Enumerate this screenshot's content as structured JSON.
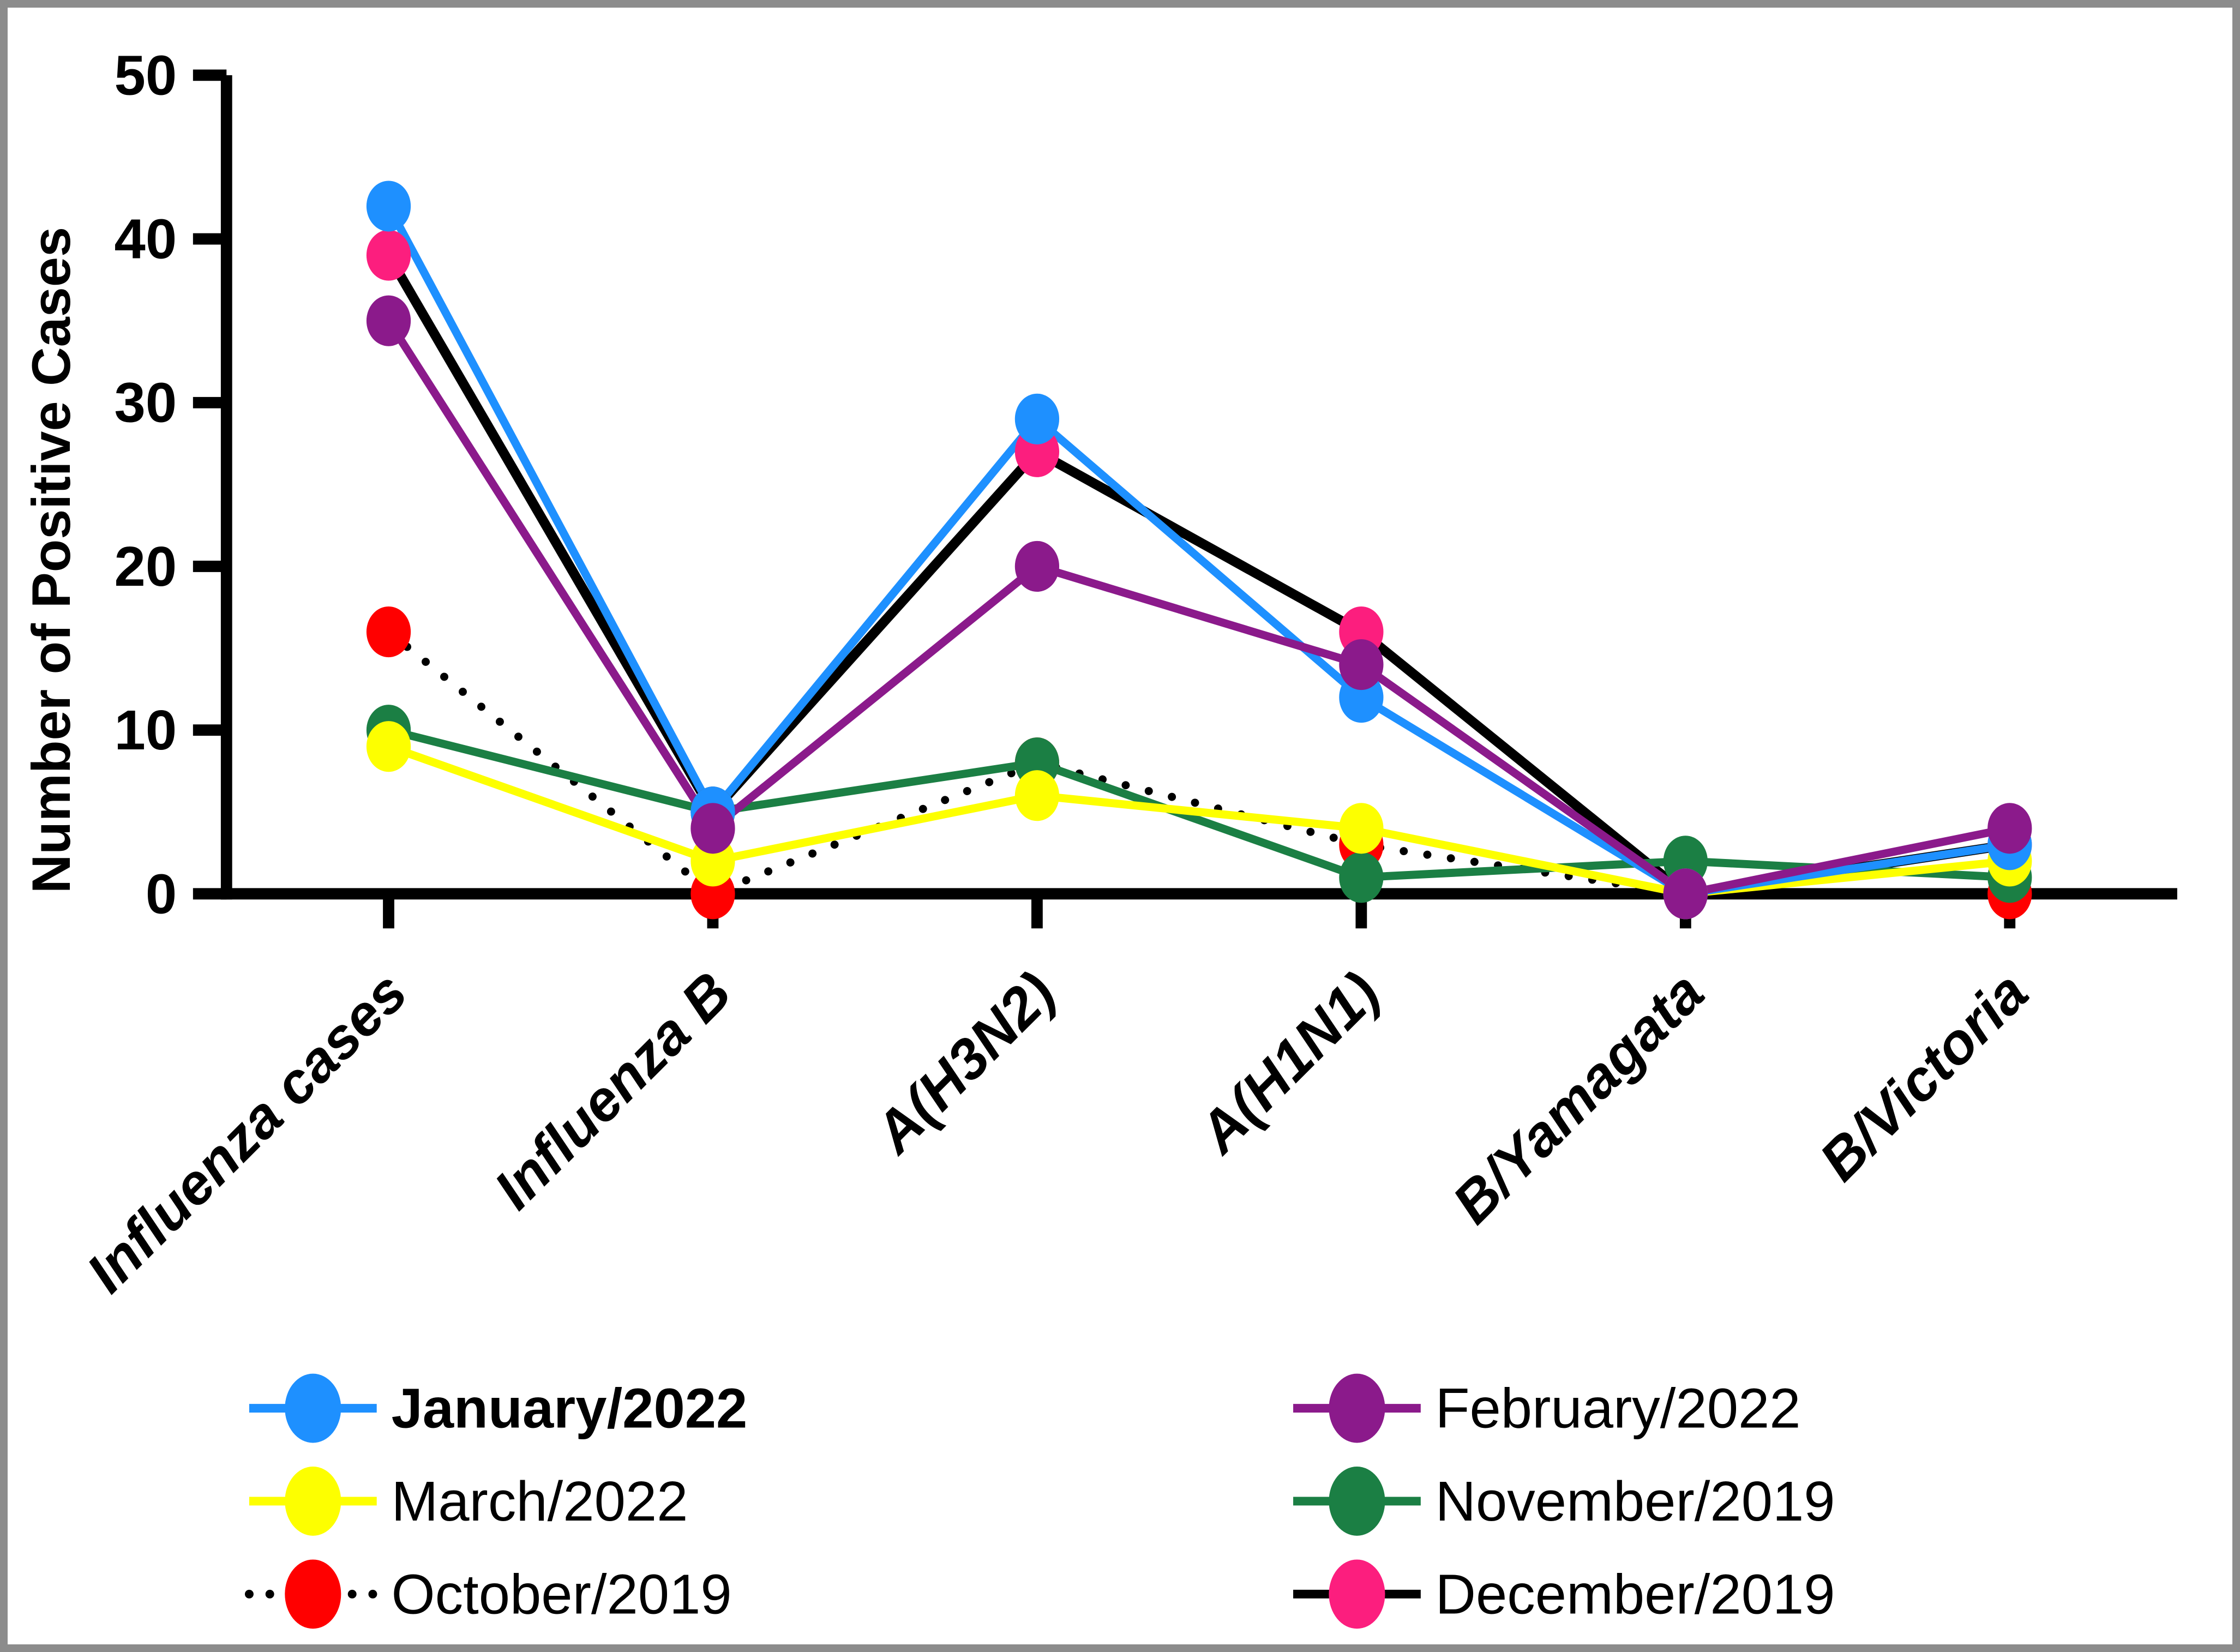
{
  "chart_data": {
    "type": "line",
    "title": "",
    "xlabel": "",
    "ylabel": "Number of Positive Cases",
    "ylim": [
      0,
      50
    ],
    "yticks": [
      0,
      10,
      20,
      30,
      40,
      50
    ],
    "grid": false,
    "legend_position": "bottom-two-columns",
    "categories": [
      "Influenza cases",
      "Influenza B",
      "A(H3N2)",
      "A(H1N1)",
      "B/Yamagata",
      "B/Victoria"
    ],
    "series": [
      {
        "name": "October/2019",
        "marker_color": "#ff0000",
        "line_color": "#000000",
        "line_style": "dotted",
        "values": [
          16,
          0,
          8,
          3,
          0,
          0
        ],
        "bold_label": false
      },
      {
        "name": "December/2019",
        "marker_color": "#fc1e7e",
        "line_color": "#000000",
        "line_style": "solid",
        "values": [
          39,
          5,
          27,
          16,
          0,
          3
        ],
        "bold_label": false
      },
      {
        "name": "November/2019",
        "marker_color": "#1b7f44",
        "line_color": "#1b7f44",
        "line_style": "solid",
        "values": [
          10,
          5,
          8,
          1,
          2,
          1
        ],
        "bold_label": false
      },
      {
        "name": "March/2022",
        "marker_color": "#fdff00",
        "line_color": "#fdff00",
        "line_style": "solid",
        "values": [
          9,
          2,
          6,
          4,
          0,
          2
        ],
        "bold_label": false
      },
      {
        "name": "January/2022",
        "marker_color": "#1e90ff",
        "line_color": "#1e90ff",
        "line_style": "solid",
        "values": [
          42,
          5,
          29,
          12,
          0,
          3
        ],
        "bold_label": true
      },
      {
        "name": "February/2022",
        "marker_color": "#8b1a8b",
        "line_color": "#8b1a8b",
        "line_style": "solid",
        "values": [
          35,
          4,
          20,
          14,
          0,
          4
        ],
        "bold_label": false
      }
    ],
    "legend": {
      "columns": [
        {
          "items": [
            "January/2022",
            "March/2022",
            "October/2019"
          ]
        },
        {
          "items": [
            "February/2022",
            "November/2019",
            "December/2019"
          ]
        }
      ]
    },
    "axis_color": "#000000",
    "text_color": "#000000"
  }
}
